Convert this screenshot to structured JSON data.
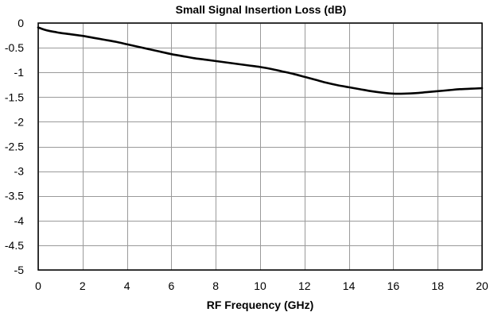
{
  "chart_data": {
    "type": "line",
    "title": "Small Signal Insertion Loss (dB)",
    "xlabel": "RF Frequency (GHz)",
    "ylabel": "",
    "xlim": [
      0,
      20
    ],
    "ylim": [
      -5,
      0
    ],
    "xticks": [
      0,
      2,
      4,
      6,
      8,
      10,
      12,
      14,
      16,
      18,
      20
    ],
    "xtick_labels": [
      "0",
      "2",
      "4",
      "6",
      "8",
      "10",
      "12",
      "14",
      "16",
      "18",
      "20"
    ],
    "yticks": [
      0,
      -0.5,
      -1,
      -1.5,
      -2,
      -2.5,
      -3,
      -3.5,
      -4,
      -4.5,
      -5
    ],
    "ytick_labels": [
      "0",
      "-0.5",
      "-1",
      "-1.5",
      "-2",
      "-2.5",
      "-3",
      "-3.5",
      "-4",
      "-4.5",
      "-5"
    ],
    "grid": true,
    "legend": "none",
    "series": [
      {
        "color": "#000000",
        "x": [
          0,
          0.25,
          0.5,
          0.75,
          1,
          1.5,
          2,
          2.5,
          3,
          3.5,
          4,
          4.5,
          5,
          5.5,
          6,
          6.5,
          7,
          7.5,
          8,
          8.5,
          9,
          9.5,
          10,
          10.5,
          11,
          11.5,
          12,
          12.5,
          13,
          13.5,
          14,
          14.5,
          15,
          15.5,
          16,
          16.5,
          17,
          17.5,
          18,
          18.5,
          19,
          19.5,
          20
        ],
        "y": [
          -0.09,
          -0.13,
          -0.16,
          -0.18,
          -0.2,
          -0.23,
          -0.26,
          -0.3,
          -0.34,
          -0.38,
          -0.43,
          -0.48,
          -0.53,
          -0.58,
          -0.63,
          -0.67,
          -0.71,
          -0.74,
          -0.77,
          -0.8,
          -0.83,
          -0.86,
          -0.89,
          -0.93,
          -0.98,
          -1.03,
          -1.09,
          -1.15,
          -1.21,
          -1.26,
          -1.3,
          -1.34,
          -1.38,
          -1.41,
          -1.43,
          -1.43,
          -1.42,
          -1.4,
          -1.38,
          -1.36,
          -1.34,
          -1.33,
          -1.32
        ]
      }
    ]
  }
}
